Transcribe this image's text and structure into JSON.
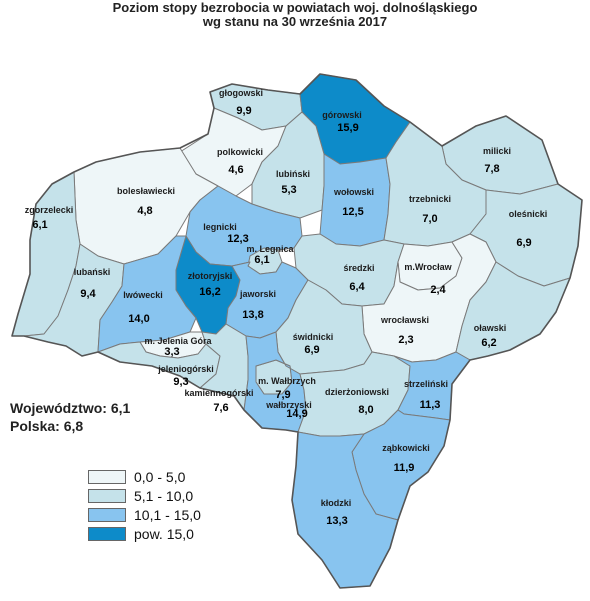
{
  "title_line1": "Poziom stopy bezrobocia w powiatach woj. dolnośląskiego",
  "title_line2": "wg stanu na 30 września 2017",
  "summary": {
    "wojewodztwo": "Województwo: 6,1",
    "polska": "Polska: 6,8"
  },
  "colors": {
    "c1": "#eef6f8",
    "c2": "#c5e2ea",
    "c3": "#88c4ef",
    "c4": "#0d8bc9"
  },
  "legend": [
    {
      "label": "0,0  -  5,0",
      "color": "#eef6f8"
    },
    {
      "label": "5,1 - 10,0",
      "color": "#c5e2ea"
    },
    {
      "label": "10,1 - 15,0",
      "color": "#88c4ef"
    },
    {
      "label": "pow. 15,0",
      "color": "#0d8bc9"
    }
  ],
  "powiaty": [
    {
      "name": "głogowski",
      "value": "9,9",
      "class": 2
    },
    {
      "name": "górowski",
      "value": "15,9",
      "class": 4
    },
    {
      "name": "polkowicki",
      "value": "4,6",
      "class": 1
    },
    {
      "name": "lubiński",
      "value": "5,3",
      "class": 2
    },
    {
      "name": "milicki",
      "value": "7,8",
      "class": 2
    },
    {
      "name": "bolesławiecki",
      "value": "4,8",
      "class": 1
    },
    {
      "name": "zgorzelecki",
      "value": "6,1",
      "class": 2
    },
    {
      "name": "wołowski",
      "value": "12,5",
      "class": 3
    },
    {
      "name": "trzebnicki",
      "value": "7,0",
      "class": 2
    },
    {
      "name": "oleśnicki",
      "value": "6,9",
      "class": 2
    },
    {
      "name": "legnicki",
      "value": "12,3",
      "class": 3
    },
    {
      "name": "m. Legnica",
      "value": "6,1",
      "class": 2
    },
    {
      "name": "lubański",
      "value": "9,4",
      "class": 2
    },
    {
      "name": "złotoryjski",
      "value": "16,2",
      "class": 4
    },
    {
      "name": "lwówecki",
      "value": "14,0",
      "class": 3
    },
    {
      "name": "jaworski",
      "value": "13,8",
      "class": 3
    },
    {
      "name": "średzki",
      "value": "6,4",
      "class": 2
    },
    {
      "name": "m.Wrocław",
      "value": "2,4",
      "class": 1
    },
    {
      "name": "wrocławski",
      "value": "2,3",
      "class": 1
    },
    {
      "name": "oławski",
      "value": "6,2",
      "class": 2
    },
    {
      "name": "m. Jelenia Góra",
      "value": "3,3",
      "class": 1
    },
    {
      "name": "jeleniogórski",
      "value": "9,3",
      "class": 2
    },
    {
      "name": "kamiennogórski",
      "value": "7,6",
      "class": 2
    },
    {
      "name": "świdnicki",
      "value": "6,9",
      "class": 2
    },
    {
      "name": "m. Wałbrzych",
      "value": "7,9",
      "class": 2
    },
    {
      "name": "wałbrzyski",
      "value": "14,9",
      "class": 3
    },
    {
      "name": "dzierżoniowski",
      "value": "8,0",
      "class": 2
    },
    {
      "name": "strzeliński",
      "value": "11,3",
      "class": 3
    },
    {
      "name": "ząbkowicki",
      "value": "11,9",
      "class": 3
    },
    {
      "name": "kłodzki",
      "value": "13,3",
      "class": 3
    }
  ]
}
